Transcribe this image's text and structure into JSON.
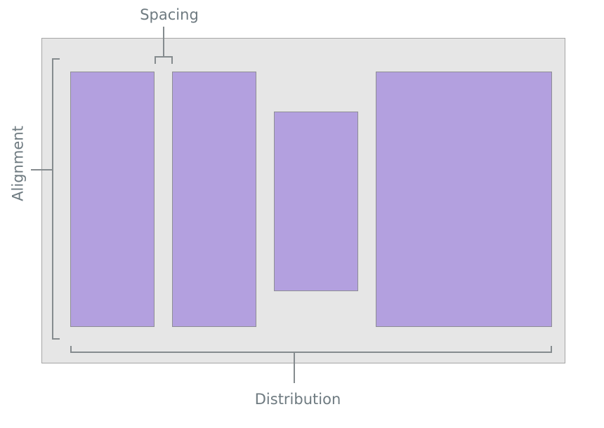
{
  "labels": {
    "spacing": "Spacing",
    "alignment": "Alignment",
    "distribution": "Distribution"
  },
  "colors": {
    "container_fill": "#e6e6e6",
    "container_border": "#a5a5a5",
    "box_fill": "#b3a0df",
    "box_border": "#8e8e94",
    "bracket": "#858b8e",
    "label_text": "#6e7a80"
  }
}
